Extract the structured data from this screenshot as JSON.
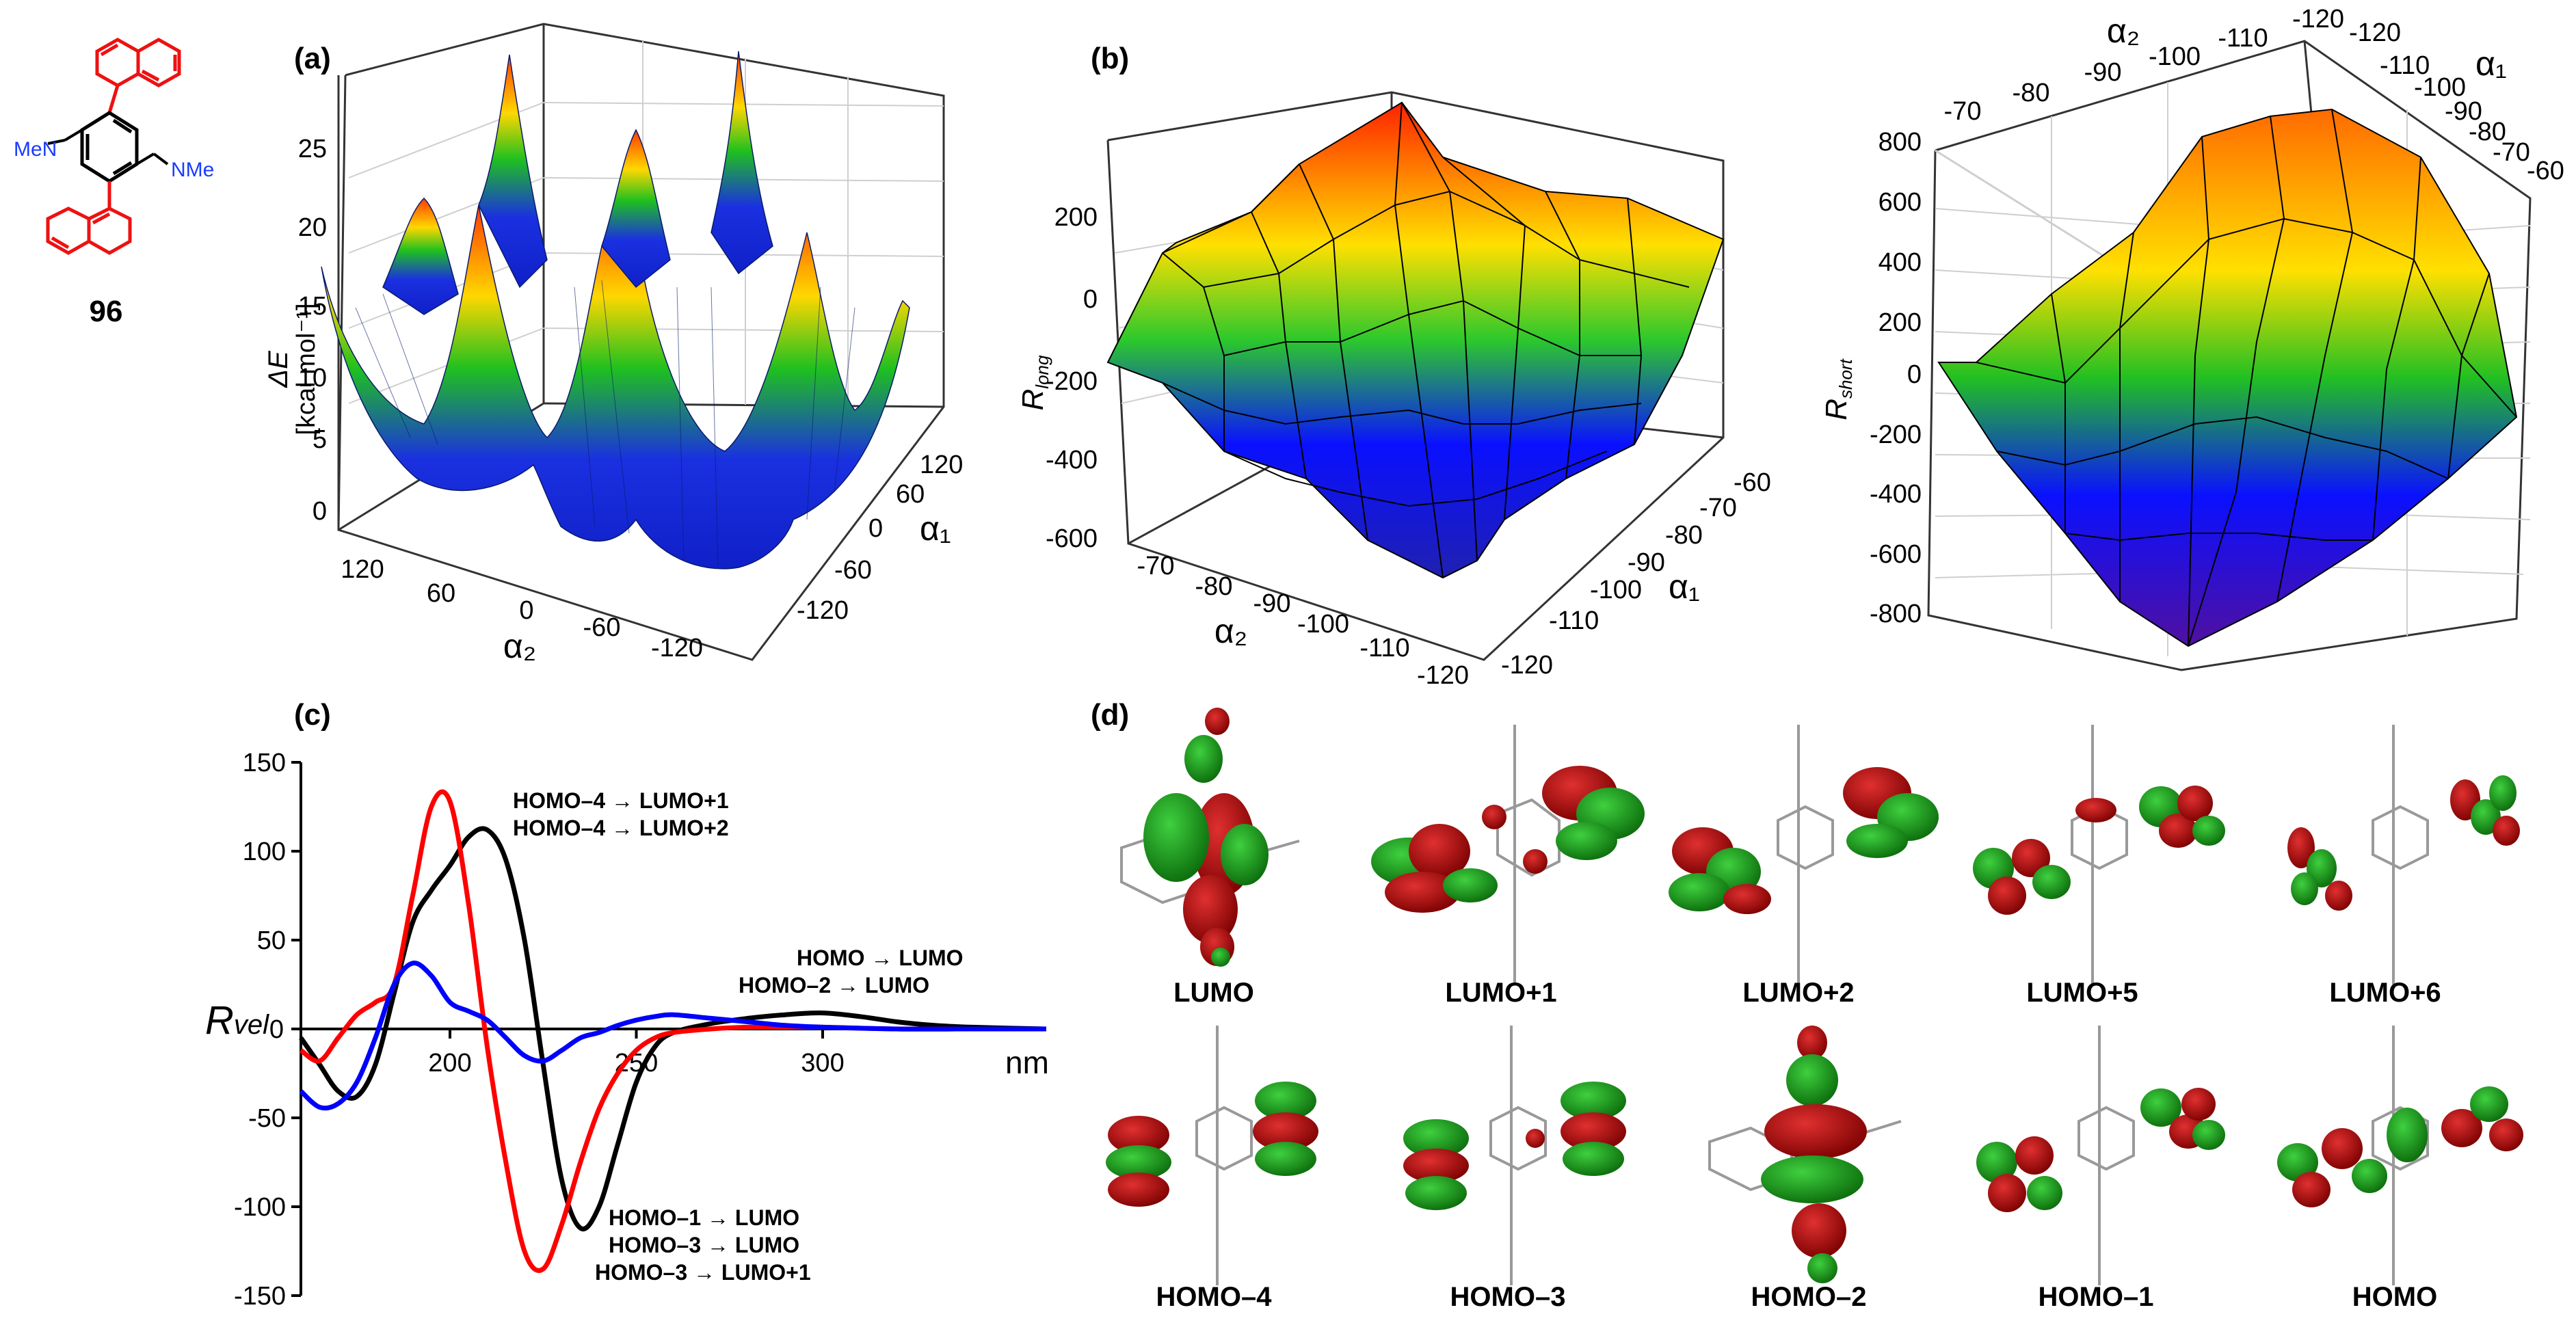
{
  "compound": {
    "label": "96",
    "substituent_left": "MeN",
    "substituent_right": "NMe"
  },
  "panel_a": {
    "tag": "(a)",
    "zlabel": "ΔE",
    "zunit": "[kcal mol⁻¹]",
    "zticks": [
      "25",
      "20",
      "15",
      "10",
      "5",
      "0"
    ],
    "xlabel": "α₂",
    "xticks": [
      "120",
      "60",
      "0",
      "-60",
      "-120"
    ],
    "ylabel": "α₁",
    "yticks": [
      "120",
      "60",
      "0",
      "-60",
      "-120"
    ],
    "zlim": [
      0,
      25
    ]
  },
  "panel_b": {
    "tag": "(b)",
    "zlabel": "R",
    "zsub": "long",
    "zticks": [
      "200",
      "0",
      "-200",
      "-400",
      "-600"
    ],
    "xlabel": "α₂",
    "xticks": [
      "-70",
      "-80",
      "-90",
      "-100",
      "-110",
      "-120"
    ],
    "ylabel": "α₁",
    "yticks": [
      "-60",
      "-70",
      "-80",
      "-90",
      "-100",
      "-110",
      "-120"
    ]
  },
  "panel_b2": {
    "zlabel": "R",
    "zsub": "short",
    "zticks": [
      "800",
      "600",
      "400",
      "200",
      "0",
      "-200",
      "-400",
      "-600",
      "-800"
    ],
    "xlabel": "α₂",
    "xticks": [
      "-70",
      "-80",
      "-90",
      "-100",
      "-110",
      "-120"
    ],
    "ylabel": "α₁",
    "yticks": [
      "-120",
      "-110",
      "-100",
      "-90",
      "-80",
      "-70",
      "-60"
    ]
  },
  "panel_c": {
    "tag": "(c)",
    "ylabel": "R",
    "ysub": "vel",
    "xunit": "nm",
    "ylim": [
      -150,
      150
    ],
    "xlim": [
      160,
      360
    ],
    "yticks": [
      150,
      100,
      50,
      0,
      -50,
      -100,
      -150
    ],
    "xticks": [
      200,
      250,
      300
    ],
    "zero_label": "0",
    "annotations": {
      "t1a": "HOMO–4 → LUMO+1",
      "t1b": "HOMO–4 → LUMO+2",
      "t2a": "HOMO → LUMO",
      "t2b": "HOMO–2 → LUMO",
      "t3a": "HOMO–1 → LUMO",
      "t3b": "HOMO–3 → LUMO",
      "t3c": "HOMO–3 → LUMO+1"
    }
  },
  "panel_d": {
    "tag": "(d)",
    "orbitals_top": [
      "LUMO",
      "LUMO+1",
      "LUMO+2",
      "LUMO+5",
      "LUMO+6"
    ],
    "orbitals_bottom": [
      "HOMO–4",
      "HOMO–3",
      "HOMO–2",
      "HOMO–1",
      "HOMO"
    ]
  },
  "chart_data": [
    {
      "type": "line",
      "title": "(c)",
      "xlabel": "nm",
      "ylabel": "Rvel",
      "xlim": [
        160,
        360
      ],
      "ylim": [
        -150,
        150
      ],
      "series": [
        {
          "name": "black",
          "color": "#000000",
          "x": [
            160,
            165,
            170,
            175,
            180,
            185,
            190,
            195,
            200,
            205,
            210,
            215,
            220,
            225,
            230,
            235,
            240,
            245,
            250,
            255,
            260,
            270,
            280,
            290,
            300,
            310,
            320,
            330,
            340,
            360
          ],
          "values": [
            -5,
            -20,
            -35,
            -38,
            -20,
            20,
            60,
            78,
            92,
            108,
            112,
            95,
            50,
            -20,
            -85,
            -112,
            -100,
            -65,
            -30,
            -10,
            -2,
            3,
            6,
            8,
            9,
            7,
            4,
            2,
            1,
            0
          ]
        },
        {
          "name": "red",
          "color": "#ff0000",
          "x": [
            160,
            165,
            170,
            175,
            180,
            185,
            190,
            195,
            200,
            205,
            210,
            215,
            220,
            225,
            230,
            235,
            240,
            245,
            250,
            255,
            260,
            270,
            280,
            290,
            300,
            320,
            340,
            360
          ],
          "values": [
            -12,
            -18,
            -5,
            8,
            15,
            25,
            75,
            125,
            128,
            70,
            -10,
            -75,
            -125,
            -135,
            -110,
            -75,
            -45,
            -25,
            -12,
            -5,
            -2,
            0,
            1,
            1,
            1,
            0,
            0,
            0
          ]
        },
        {
          "name": "blue",
          "color": "#0000ff",
          "x": [
            160,
            165,
            170,
            175,
            180,
            185,
            190,
            195,
            200,
            205,
            210,
            215,
            220,
            225,
            230,
            235,
            240,
            245,
            250,
            255,
            260,
            270,
            280,
            290,
            300,
            320,
            340,
            360
          ],
          "values": [
            -35,
            -44,
            -42,
            -30,
            -5,
            25,
            37,
            30,
            15,
            10,
            5,
            -5,
            -15,
            -18,
            -12,
            -5,
            -2,
            2,
            5,
            7,
            8,
            6,
            4,
            2,
            1,
            0,
            0,
            0
          ]
        }
      ]
    },
    {
      "type": "table",
      "title": "(a) ΔE surface",
      "zlim": [
        0,
        25
      ],
      "note": "3D surface over α₁, α₂ in [-120,120]"
    }
  ]
}
